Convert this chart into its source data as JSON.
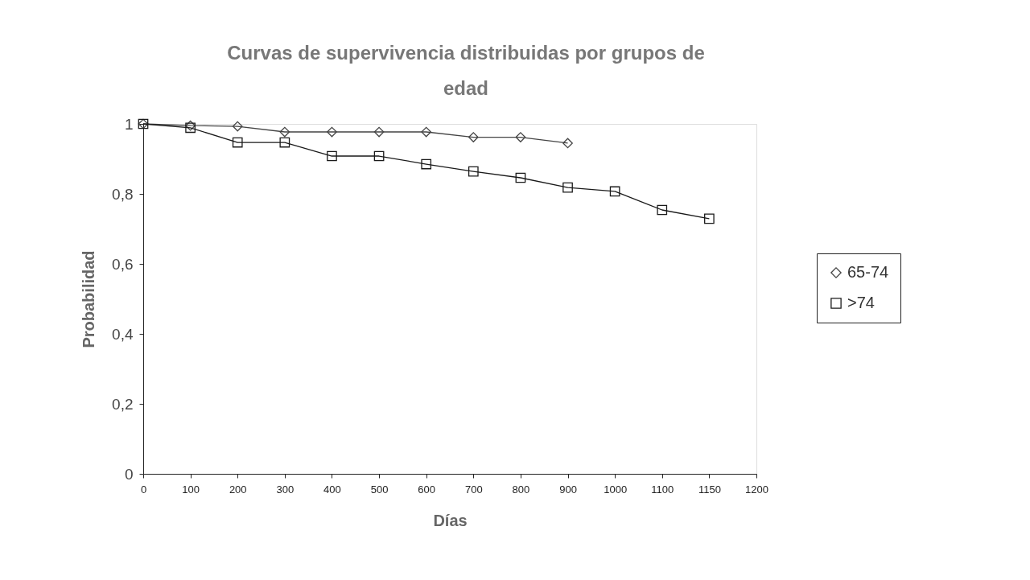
{
  "chart_data": {
    "type": "line",
    "title": [
      "Curvas de supervivencia distribuidas por grupos de",
      "edad"
    ],
    "xlabel": "Días",
    "ylabel": "Probabilidad",
    "categories": [
      "0",
      "100",
      "200",
      "300",
      "400",
      "500",
      "600",
      "700",
      "800",
      "900",
      "1000",
      "1100",
      "1150",
      "1200"
    ],
    "series": [
      {
        "name": "65-74",
        "color": "#444444",
        "marker": "diamond",
        "values": [
          1,
          0.995,
          0.993,
          0.977,
          0.977,
          0.977,
          0.977,
          0.962,
          0.962,
          0.945,
          null,
          null,
          null,
          null
        ]
      },
      {
        "name": ">74",
        "color": "#1a1a1a",
        "marker": "square",
        "values": [
          1,
          0.989,
          0.947,
          0.947,
          0.908,
          0.908,
          0.885,
          0.864,
          0.846,
          0.818,
          0.807,
          0.754,
          0.729,
          null
        ]
      }
    ],
    "ylim": [
      0,
      1
    ],
    "yticks": [
      {
        "value": 0,
        "label": "0"
      },
      {
        "value": 0.2,
        "label": "0,2"
      },
      {
        "value": 0.4,
        "label": "0,4"
      },
      {
        "value": 0.6,
        "label": "0,6"
      },
      {
        "value": 0.8,
        "label": "0,8"
      },
      {
        "value": 1,
        "label": "1"
      }
    ],
    "grid": false,
    "legend": "right",
    "line_style": "solid"
  }
}
